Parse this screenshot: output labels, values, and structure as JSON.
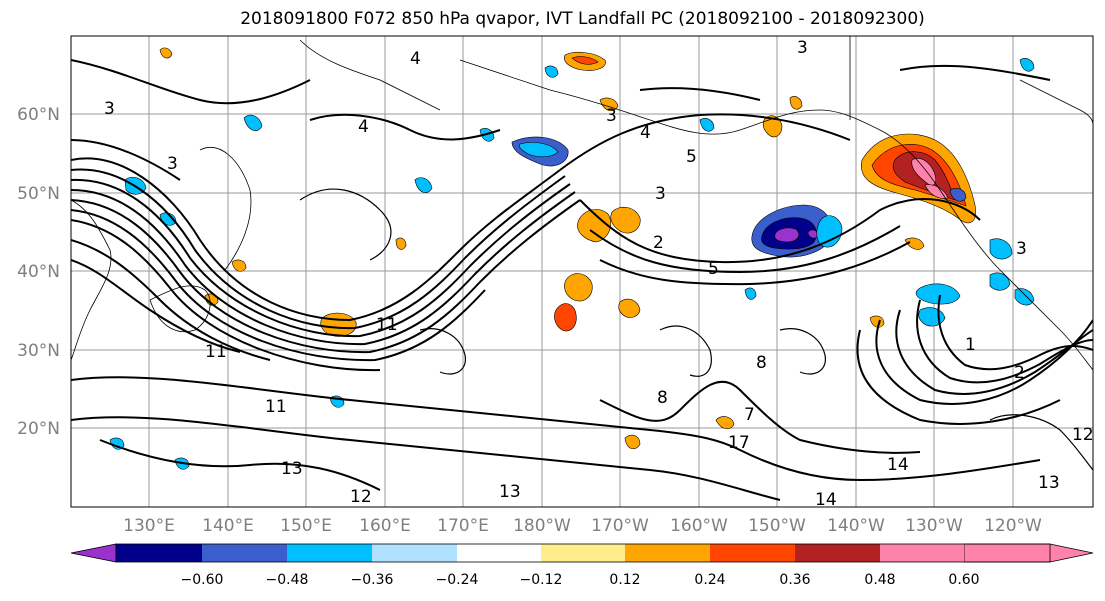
{
  "title": "2018091800 F072 850 hPa qvapor, IVT Landfall PC (2018092100 - 2018092300)",
  "lat_ticks": [
    "60°N",
    "50°N",
    "40°N",
    "30°N",
    "20°N"
  ],
  "lon_ticks": [
    "130°E",
    "140°E",
    "150°E",
    "160°E",
    "170°E",
    "180°W",
    "170°W",
    "160°W",
    "150°W",
    "140°W",
    "130°W",
    "120°W"
  ],
  "colorbar": {
    "colors": [
      "#9a32cd",
      "#00008b",
      "#3a5fcd",
      "#00bfff",
      "#b0e2ff",
      "#ffffff",
      "#ffec8b",
      "#ffa500",
      "#ff4500",
      "#b22222",
      "#ff82ab"
    ],
    "tick_labels": [
      "−0.60",
      "−0.48",
      "−0.36",
      "−0.24",
      "−0.12",
      "0.12",
      "0.24",
      "0.36",
      "0.48",
      "0.60"
    ]
  },
  "contour_labels": [
    "3",
    "4",
    "3",
    "4",
    "3",
    "3",
    "4",
    "5",
    "3",
    "5",
    "11",
    "11",
    "11",
    "13",
    "12",
    "13",
    "14",
    "14",
    "8",
    "8",
    "1",
    "2",
    "3",
    "12",
    "13",
    "2",
    "7",
    "17"
  ]
}
